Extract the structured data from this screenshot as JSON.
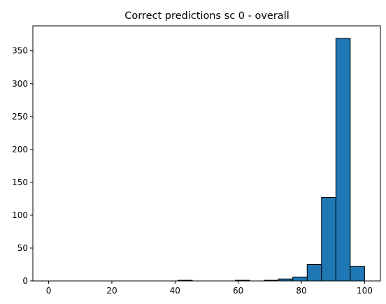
{
  "chart_data": {
    "type": "bar",
    "title": "Correct predictions sc 0 - overall",
    "xlabel": "",
    "ylabel": "",
    "xlim": [
      -5,
      105
    ],
    "ylim": [
      0,
      388
    ],
    "x_ticks": [
      0,
      20,
      40,
      60,
      80,
      100
    ],
    "y_ticks": [
      0,
      50,
      100,
      150,
      200,
      250,
      300,
      350
    ],
    "bar_color": "#1f77b4",
    "edge_color": "#000000",
    "grid": false,
    "bins": [
      {
        "start": 0,
        "end": 4.545,
        "count": 0
      },
      {
        "start": 4.545,
        "end": 9.091,
        "count": 0
      },
      {
        "start": 9.091,
        "end": 13.636,
        "count": 0
      },
      {
        "start": 13.636,
        "end": 18.182,
        "count": 0
      },
      {
        "start": 18.182,
        "end": 22.727,
        "count": 0
      },
      {
        "start": 22.727,
        "end": 27.273,
        "count": 0
      },
      {
        "start": 27.273,
        "end": 31.818,
        "count": 0
      },
      {
        "start": 31.818,
        "end": 36.364,
        "count": 0
      },
      {
        "start": 36.364,
        "end": 40.909,
        "count": 0
      },
      {
        "start": 40.909,
        "end": 45.455,
        "count": 1
      },
      {
        "start": 45.455,
        "end": 50.0,
        "count": 0
      },
      {
        "start": 50.0,
        "end": 54.545,
        "count": 0
      },
      {
        "start": 54.545,
        "end": 59.091,
        "count": 0
      },
      {
        "start": 59.091,
        "end": 63.636,
        "count": 1
      },
      {
        "start": 63.636,
        "end": 68.182,
        "count": 0
      },
      {
        "start": 68.182,
        "end": 72.727,
        "count": 1
      },
      {
        "start": 72.727,
        "end": 77.273,
        "count": 3
      },
      {
        "start": 77.273,
        "end": 81.818,
        "count": 6
      },
      {
        "start": 81.818,
        "end": 86.364,
        "count": 25
      },
      {
        "start": 86.364,
        "end": 90.909,
        "count": 127
      },
      {
        "start": 90.909,
        "end": 95.455,
        "count": 369
      },
      {
        "start": 95.455,
        "end": 100.0,
        "count": 22
      }
    ]
  }
}
